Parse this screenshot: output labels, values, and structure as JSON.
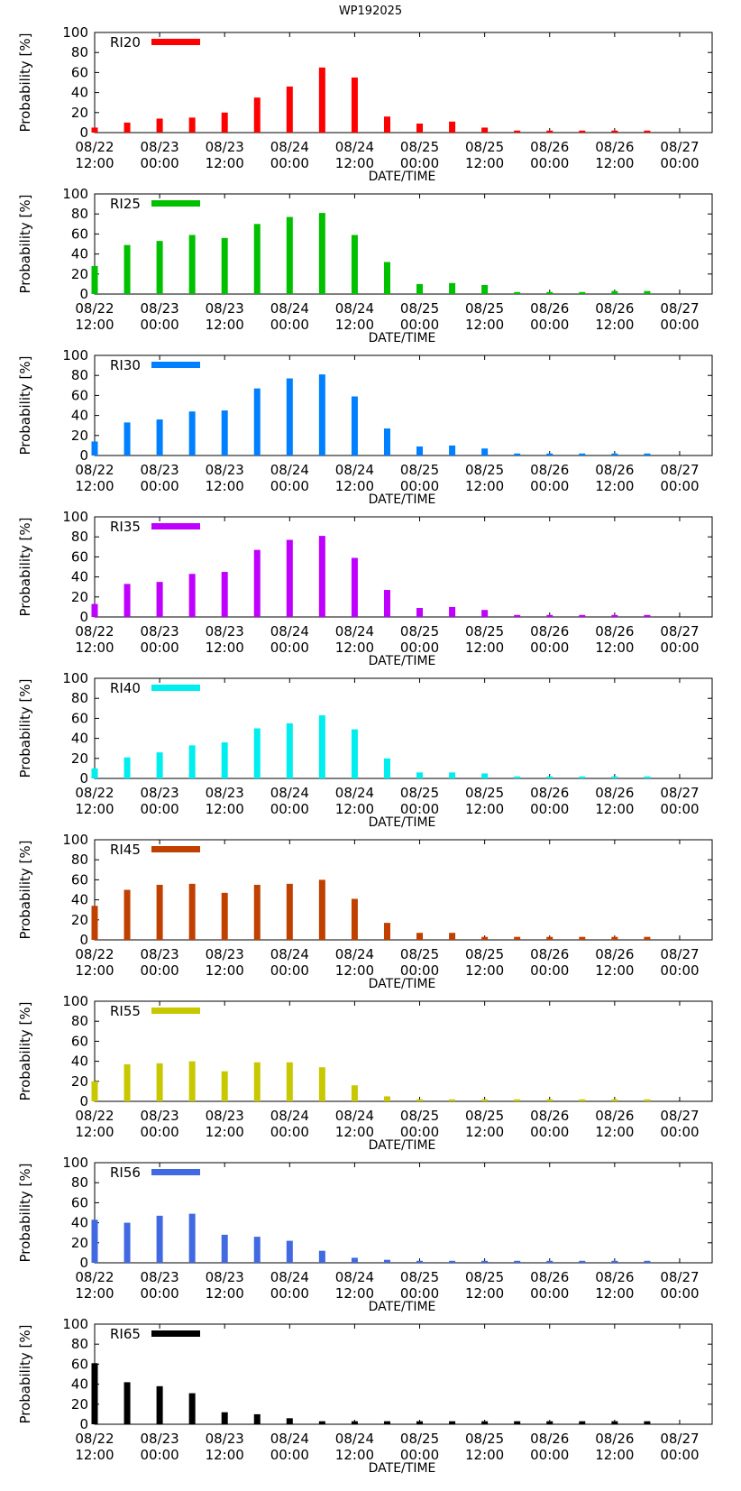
{
  "figure_title": "WP192025",
  "chart_data": [
    {
      "type": "bar",
      "label": "RI20",
      "color": "#ff0000",
      "values": [
        5,
        10,
        14,
        15,
        20,
        35,
        46,
        65,
        55,
        16,
        9,
        11,
        5,
        2,
        2,
        2,
        2,
        2
      ],
      "title": "",
      "xlabel": "DATE/TIME",
      "ylabel": "Probability [%]",
      "ylim": [
        0,
        100
      ],
      "yticks": [
        "0",
        "20",
        "40",
        "60",
        "80",
        "100"
      ],
      "xtick_dates": [
        "08/22",
        "08/23",
        "08/23",
        "08/24",
        "08/24",
        "08/25",
        "08/25",
        "08/26",
        "08/26",
        "08/27"
      ],
      "xtick_times": [
        "12:00",
        "00:00",
        "12:00",
        "00:00",
        "12:00",
        "00:00",
        "12:00",
        "00:00",
        "12:00",
        "00:00"
      ]
    },
    {
      "type": "bar",
      "label": "RI25",
      "color": "#00c000",
      "values": [
        28,
        49,
        53,
        59,
        56,
        70,
        77,
        81,
        59,
        32,
        10,
        11,
        9,
        2,
        2,
        2,
        3,
        3
      ],
      "title": "",
      "xlabel": "DATE/TIME",
      "ylabel": "Probability [%]",
      "ylim": [
        0,
        100
      ],
      "yticks": [
        "0",
        "20",
        "40",
        "60",
        "80",
        "100"
      ],
      "xtick_dates": [
        "08/22",
        "08/23",
        "08/23",
        "08/24",
        "08/24",
        "08/25",
        "08/25",
        "08/26",
        "08/26",
        "08/27"
      ],
      "xtick_times": [
        "12:00",
        "00:00",
        "12:00",
        "00:00",
        "12:00",
        "00:00",
        "12:00",
        "00:00",
        "12:00",
        "00:00"
      ]
    },
    {
      "type": "bar",
      "label": "RI30",
      "color": "#0080ff",
      "values": [
        14,
        33,
        36,
        44,
        45,
        67,
        77,
        81,
        59,
        27,
        9,
        10,
        7,
        2,
        2,
        2,
        2,
        2
      ],
      "title": "",
      "xlabel": "DATE/TIME",
      "ylabel": "Probability [%]",
      "ylim": [
        0,
        100
      ],
      "yticks": [
        "0",
        "20",
        "40",
        "60",
        "80",
        "100"
      ],
      "xtick_dates": [
        "08/22",
        "08/23",
        "08/23",
        "08/24",
        "08/24",
        "08/25",
        "08/25",
        "08/26",
        "08/26",
        "08/27"
      ],
      "xtick_times": [
        "12:00",
        "00:00",
        "12:00",
        "00:00",
        "12:00",
        "00:00",
        "12:00",
        "00:00",
        "12:00",
        "00:00"
      ]
    },
    {
      "type": "bar",
      "label": "RI35",
      "color": "#c000ff",
      "values": [
        13,
        33,
        35,
        43,
        45,
        67,
        77,
        81,
        59,
        27,
        9,
        10,
        7,
        2,
        2,
        2,
        2,
        2
      ],
      "title": "",
      "xlabel": "DATE/TIME",
      "ylabel": "Probability [%]",
      "ylim": [
        0,
        100
      ],
      "yticks": [
        "0",
        "20",
        "40",
        "60",
        "80",
        "100"
      ],
      "xtick_dates": [
        "08/22",
        "08/23",
        "08/23",
        "08/24",
        "08/24",
        "08/25",
        "08/25",
        "08/26",
        "08/26",
        "08/27"
      ],
      "xtick_times": [
        "12:00",
        "00:00",
        "12:00",
        "00:00",
        "12:00",
        "00:00",
        "12:00",
        "00:00",
        "12:00",
        "00:00"
      ]
    },
    {
      "type": "bar",
      "label": "RI40",
      "color": "#00eeee",
      "values": [
        10,
        21,
        26,
        33,
        36,
        50,
        55,
        63,
        49,
        20,
        6,
        6,
        5,
        2,
        2,
        2,
        2,
        2
      ],
      "title": "",
      "xlabel": "DATE/TIME",
      "ylabel": "Probability [%]",
      "ylim": [
        0,
        100
      ],
      "yticks": [
        "0",
        "20",
        "40",
        "60",
        "80",
        "100"
      ],
      "xtick_dates": [
        "08/22",
        "08/23",
        "08/23",
        "08/24",
        "08/24",
        "08/25",
        "08/25",
        "08/26",
        "08/26",
        "08/27"
      ],
      "xtick_times": [
        "12:00",
        "00:00",
        "12:00",
        "00:00",
        "12:00",
        "00:00",
        "12:00",
        "00:00",
        "12:00",
        "00:00"
      ]
    },
    {
      "type": "bar",
      "label": "RI45",
      "color": "#c04000",
      "values": [
        34,
        50,
        55,
        56,
        47,
        55,
        56,
        60,
        41,
        17,
        7,
        7,
        3,
        3,
        3,
        3,
        3,
        3
      ],
      "title": "",
      "xlabel": "DATE/TIME",
      "ylabel": "Probability [%]",
      "ylim": [
        0,
        100
      ],
      "yticks": [
        "0",
        "20",
        "40",
        "60",
        "80",
        "100"
      ],
      "xtick_dates": [
        "08/22",
        "08/23",
        "08/23",
        "08/24",
        "08/24",
        "08/25",
        "08/25",
        "08/26",
        "08/26",
        "08/27"
      ],
      "xtick_times": [
        "12:00",
        "00:00",
        "12:00",
        "00:00",
        "12:00",
        "00:00",
        "12:00",
        "00:00",
        "12:00",
        "00:00"
      ]
    },
    {
      "type": "bar",
      "label": "RI55",
      "color": "#c8c800",
      "values": [
        20,
        37,
        38,
        40,
        30,
        39,
        39,
        34,
        16,
        5,
        2,
        2,
        2,
        2,
        2,
        2,
        2,
        2
      ],
      "title": "",
      "xlabel": "DATE/TIME",
      "ylabel": "Probability [%]",
      "ylim": [
        0,
        100
      ],
      "yticks": [
        "0",
        "20",
        "40",
        "60",
        "80",
        "100"
      ],
      "xtick_dates": [
        "08/22",
        "08/23",
        "08/23",
        "08/24",
        "08/24",
        "08/25",
        "08/25",
        "08/26",
        "08/26",
        "08/27"
      ],
      "xtick_times": [
        "12:00",
        "00:00",
        "12:00",
        "00:00",
        "12:00",
        "00:00",
        "12:00",
        "00:00",
        "12:00",
        "00:00"
      ]
    },
    {
      "type": "bar",
      "label": "RI56",
      "color": "#4169e1",
      "values": [
        43,
        40,
        47,
        49,
        28,
        26,
        22,
        12,
        5,
        3,
        2,
        2,
        2,
        2,
        2,
        2,
        2,
        2
      ],
      "title": "",
      "xlabel": "DATE/TIME",
      "ylabel": "Probability [%]",
      "ylim": [
        0,
        100
      ],
      "yticks": [
        "0",
        "20",
        "40",
        "60",
        "80",
        "100"
      ],
      "xtick_dates": [
        "08/22",
        "08/23",
        "08/23",
        "08/24",
        "08/24",
        "08/25",
        "08/25",
        "08/26",
        "08/26",
        "08/27"
      ],
      "xtick_times": [
        "12:00",
        "00:00",
        "12:00",
        "00:00",
        "12:00",
        "00:00",
        "12:00",
        "00:00",
        "12:00",
        "00:00"
      ]
    },
    {
      "type": "bar",
      "label": "RI65",
      "color": "#000000",
      "values": [
        61,
        42,
        38,
        31,
        12,
        10,
        6,
        3,
        3,
        3,
        3,
        3,
        3,
        3,
        3,
        3,
        3,
        3
      ],
      "title": "",
      "xlabel": "DATE/TIME",
      "ylabel": "Probability [%]",
      "ylim": [
        0,
        100
      ],
      "yticks": [
        "0",
        "20",
        "40",
        "60",
        "80",
        "100"
      ],
      "xtick_dates": [
        "08/22",
        "08/23",
        "08/23",
        "08/24",
        "08/24",
        "08/25",
        "08/25",
        "08/26",
        "08/26",
        "08/27"
      ],
      "xtick_times": [
        "12:00",
        "00:00",
        "12:00",
        "00:00",
        "12:00",
        "00:00",
        "12:00",
        "00:00",
        "12:00",
        "00:00"
      ]
    }
  ]
}
